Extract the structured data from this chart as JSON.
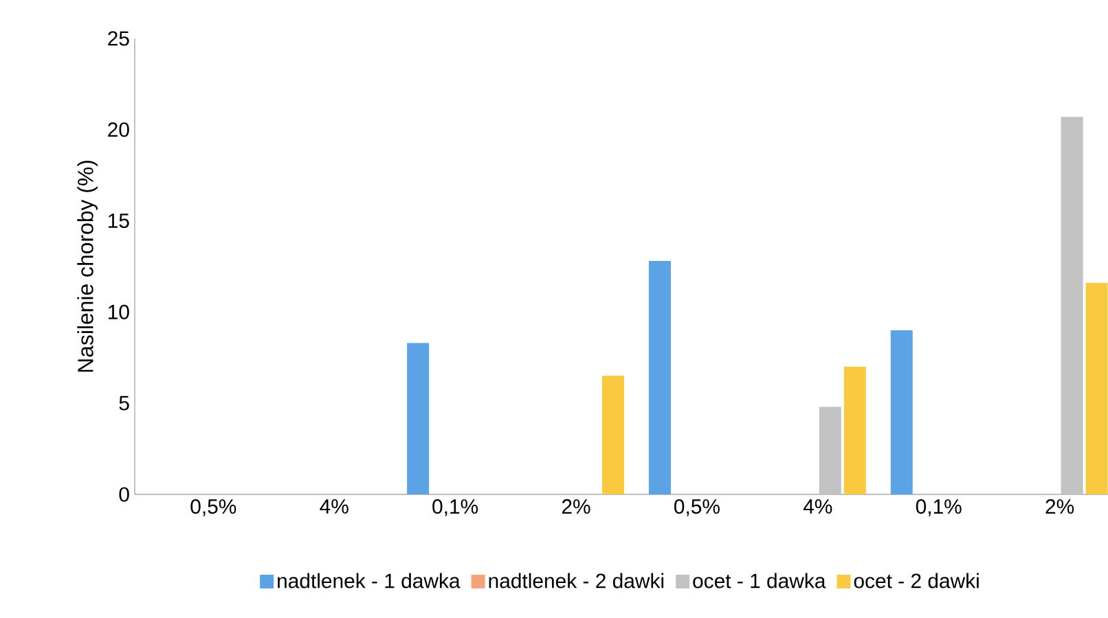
{
  "chart_data": {
    "type": "bar",
    "ylabel": "Nasilenie choroby (%)",
    "categories": [
      "0,5%",
      "4%",
      "0,1%",
      "2%",
      "0,5%",
      "4%",
      "0,1%",
      "2%"
    ],
    "series": [
      {
        "name": "nadtlenek - 1 dawka",
        "color": "#5ba3e5",
        "values": [
          0,
          0,
          8.3,
          0,
          12.8,
          0,
          9.0,
          0
        ]
      },
      {
        "name": "nadtlenek - 2 dawki",
        "color": "#f4a47c",
        "values": [
          0,
          0,
          0,
          0,
          0,
          0,
          0,
          0
        ]
      },
      {
        "name": "ocet - 1 dawka",
        "color": "#c2c2c2",
        "values": [
          0,
          0,
          0,
          0,
          0,
          4.8,
          0,
          20.7
        ]
      },
      {
        "name": "ocet - 2 dawki",
        "color": "#f9c940",
        "values": [
          0,
          0,
          0,
          6.5,
          0,
          7.0,
          0,
          11.6
        ]
      }
    ],
    "ylim": [
      0,
      25
    ],
    "yticks": [
      0,
      5,
      10,
      15,
      20,
      25
    ],
    "grid": false,
    "legend": "bottom"
  }
}
